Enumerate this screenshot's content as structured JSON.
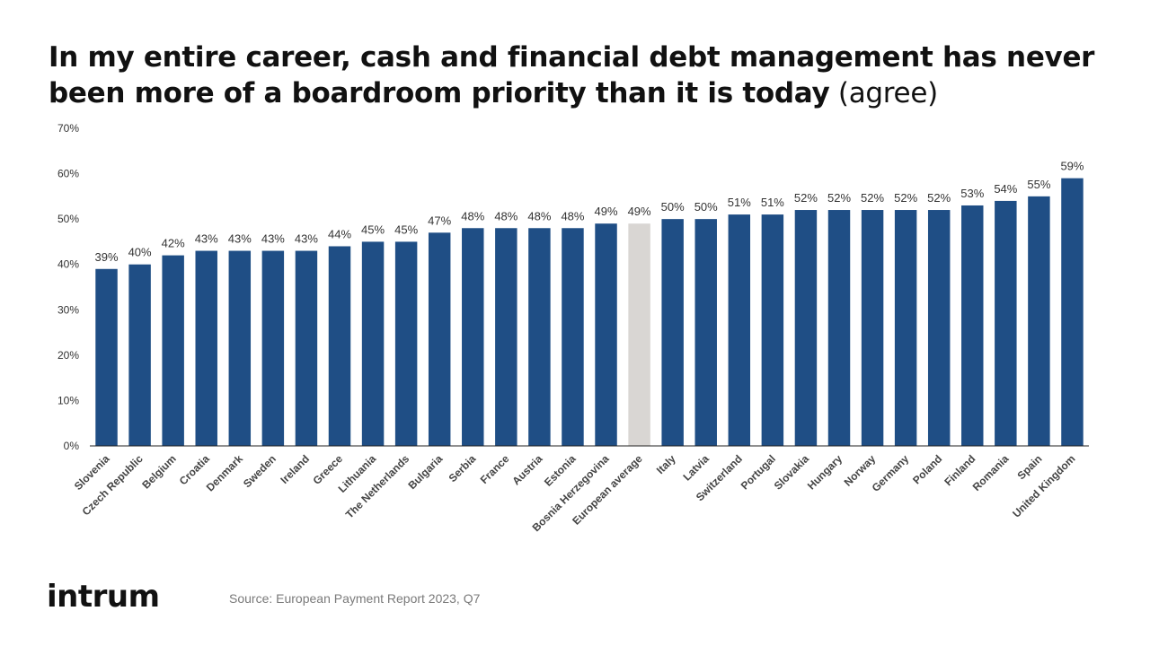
{
  "title": {
    "bold": "In my entire career, cash and financial debt management has never been more of a boardroom priority than it is today",
    "light": " (agree)"
  },
  "logo": "intrum",
  "source": "Source: European Payment Report 2023, Q7",
  "colors": {
    "bar": "#1f4e85",
    "highlight": "#d9d6d3",
    "axis": "#222222",
    "text": "#333333"
  },
  "chart_data": {
    "type": "bar",
    "categories": [
      "Slovenia",
      "Czech Republic",
      "Belgium",
      "Croatia",
      "Denmark",
      "Sweden",
      "Ireland",
      "Greece",
      "Lithuania",
      "The Netherlands",
      "Bulgaria",
      "Serbia",
      "France",
      "Austria",
      "Estonia",
      "Bosnia Herzegovina",
      "European average",
      "Italy",
      "Latvia",
      "Switzerland",
      "Portugal",
      "Slovakia",
      "Hungary",
      "Norway",
      "Germany",
      "Poland",
      "Finland",
      "Romania",
      "Spain",
      "United Kingdom"
    ],
    "values": [
      39,
      40,
      42,
      43,
      43,
      43,
      43,
      44,
      45,
      45,
      47,
      48,
      48,
      48,
      48,
      49,
      49,
      50,
      50,
      51,
      51,
      52,
      52,
      52,
      52,
      52,
      53,
      54,
      55,
      59
    ],
    "value_labels": [
      "39%",
      "40%",
      "42%",
      "43%",
      "43%",
      "43%",
      "43%",
      "44%",
      "45%",
      "45%",
      "47%",
      "48%",
      "48%",
      "48%",
      "48%",
      "49%",
      "49%",
      "50%",
      "50%",
      "51%",
      "51%",
      "52%",
      "52%",
      "52%",
      "52%",
      "52%",
      "53%",
      "54%",
      "55%",
      "59%"
    ],
    "highlight_category": "European average",
    "yticks": [
      0,
      10,
      20,
      30,
      40,
      50,
      60,
      70
    ],
    "ytick_labels": [
      "0%",
      "10%",
      "20%",
      "30%",
      "40%",
      "50%",
      "60%",
      "70%"
    ],
    "ylim": [
      0,
      70
    ],
    "grid": false,
    "xlabel": "",
    "ylabel": ""
  }
}
